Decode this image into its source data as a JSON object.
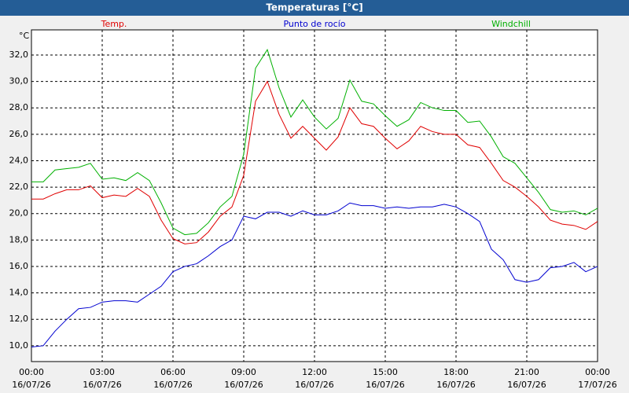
{
  "chart_data": {
    "type": "line",
    "title": "Temperaturas [°C]",
    "y_unit": "°C",
    "x": [
      0,
      0.5,
      1,
      1.5,
      2,
      2.5,
      3,
      3.5,
      4,
      4.5,
      5,
      5.5,
      6,
      6.5,
      7,
      7.5,
      8,
      8.5,
      9,
      9.5,
      10,
      10.5,
      11,
      11.5,
      12,
      12.5,
      13,
      13.5,
      14,
      14.5,
      15,
      15.5,
      16,
      16.5,
      17,
      17.5,
      18,
      18.5,
      19,
      19.5,
      20,
      20.5,
      21,
      21.5,
      22,
      22.5,
      23,
      23.5,
      24
    ],
    "series": [
      {
        "name": "Temp.",
        "color": "#e00000",
        "values": [
          21.1,
          21.1,
          21.5,
          21.8,
          21.8,
          22.1,
          21.2,
          21.4,
          21.3,
          21.9,
          21.3,
          19.5,
          18.1,
          17.7,
          17.8,
          18.6,
          19.8,
          20.5,
          22.9,
          28.5,
          30.0,
          27.5,
          25.7,
          26.6,
          25.7,
          24.8,
          25.8,
          28.0,
          26.8,
          26.6,
          25.7,
          24.9,
          25.5,
          26.6,
          26.2,
          26.0,
          26.0,
          25.2,
          25.0,
          23.8,
          22.5,
          22.0,
          21.3,
          20.5,
          19.5,
          19.2,
          19.1,
          18.8,
          19.4
        ]
      },
      {
        "name": "Punto de rocío",
        "color": "#0000d0",
        "values": [
          9.9,
          10.0,
          11.1,
          12.0,
          12.8,
          12.9,
          13.3,
          13.4,
          13.4,
          13.3,
          13.9,
          14.5,
          15.6,
          16.0,
          16.2,
          16.8,
          17.5,
          18.0,
          19.8,
          19.6,
          20.1,
          20.1,
          19.8,
          20.2,
          19.9,
          19.9,
          20.2,
          20.8,
          20.6,
          20.6,
          20.4,
          20.5,
          20.4,
          20.5,
          20.5,
          20.7,
          20.5,
          20.0,
          19.4,
          17.3,
          16.5,
          15.0,
          14.8,
          15.0,
          15.9,
          16.0,
          16.3,
          15.6,
          16.0
        ]
      },
      {
        "name": "Windchill",
        "color": "#00b000",
        "values": [
          22.4,
          22.4,
          23.3,
          23.4,
          23.5,
          23.8,
          22.6,
          22.7,
          22.5,
          23.1,
          22.5,
          20.8,
          18.9,
          18.4,
          18.5,
          19.3,
          20.5,
          21.3,
          24.5,
          31.0,
          32.4,
          29.5,
          27.3,
          28.6,
          27.3,
          26.4,
          27.2,
          30.1,
          28.5,
          28.3,
          27.4,
          26.6,
          27.1,
          28.4,
          28.0,
          27.8,
          27.8,
          26.9,
          27.0,
          25.8,
          24.3,
          23.8,
          22.7,
          21.6,
          20.3,
          20.1,
          20.2,
          19.9,
          20.4
        ]
      }
    ],
    "xlim": [
      0,
      24
    ],
    "xticks": [
      {
        "value": 0,
        "label": [
          "00:00",
          "16/07/26"
        ]
      },
      {
        "value": 3,
        "label": [
          "03:00",
          "16/07/26"
        ]
      },
      {
        "value": 6,
        "label": [
          "06:00",
          "16/07/26"
        ]
      },
      {
        "value": 9,
        "label": [
          "09:00",
          "16/07/26"
        ]
      },
      {
        "value": 12,
        "label": [
          "12:00",
          "16/07/26"
        ]
      },
      {
        "value": 15,
        "label": [
          "15:00",
          "16/07/26"
        ]
      },
      {
        "value": 18,
        "label": [
          "18:00",
          "16/07/26"
        ]
      },
      {
        "value": 21,
        "label": [
          "21:00",
          "16/07/26"
        ]
      },
      {
        "value": 24,
        "label": [
          "00:00",
          "17/07/26"
        ]
      }
    ],
    "ylim": [
      8.8,
      33.9
    ],
    "yticks": [
      {
        "value": 10,
        "label": "10,0"
      },
      {
        "value": 12,
        "label": "12,0"
      },
      {
        "value": 14,
        "label": "14,0"
      },
      {
        "value": 16,
        "label": "16,0"
      },
      {
        "value": 18,
        "label": "18,0"
      },
      {
        "value": 20,
        "label": "20,0"
      },
      {
        "value": 22,
        "label": "22,0"
      },
      {
        "value": 24,
        "label": "24,0"
      },
      {
        "value": 26,
        "label": "26,0"
      },
      {
        "value": 28,
        "label": "28,0"
      },
      {
        "value": 30,
        "label": "30,0"
      },
      {
        "value": 32,
        "label": "32,0"
      }
    ],
    "grid": true
  }
}
